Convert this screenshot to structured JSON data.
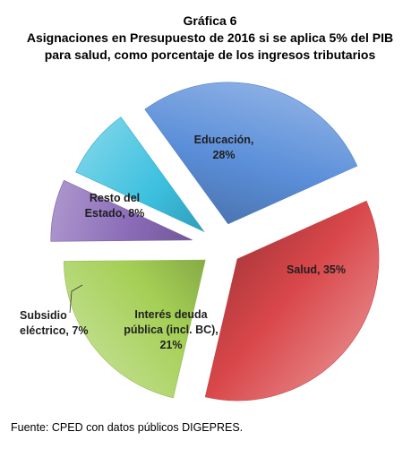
{
  "chart_data": {
    "type": "pie",
    "title": "Gráfica 6",
    "subtitle": [
      "Asignaciones en Presupuesto de 2016 si se aplica 5% del PIB",
      "para salud, como porcentaje de los ingresos tributarios"
    ],
    "slices": [
      {
        "label": [
          "Educación,",
          "28%"
        ],
        "category": "Educación",
        "value": 28,
        "color": "#5b8fd9"
      },
      {
        "label": [
          "Salud, 35%"
        ],
        "category": "Salud",
        "value": 35,
        "color": "#d9474a"
      },
      {
        "label": [
          "Interés deuda",
          "pública (incl. BC),",
          "21%"
        ],
        "category": "Interés deuda pública (incl. BC)",
        "value": 21,
        "color": "#a4cf55"
      },
      {
        "label": [
          "Subsidio",
          "eléctrico, 7%"
        ],
        "category": "Subsidio eléctrico",
        "value": 7,
        "color": "#8a6bb8"
      },
      {
        "label": [
          "Resto del",
          "Estado, 8%"
        ],
        "category": "Resto del Estado",
        "value": 8,
        "color": "#3cc0df"
      }
    ],
    "exploded": true,
    "legend": "none"
  },
  "source": "Fuente: CPED con datos públicos DIGEPRES."
}
